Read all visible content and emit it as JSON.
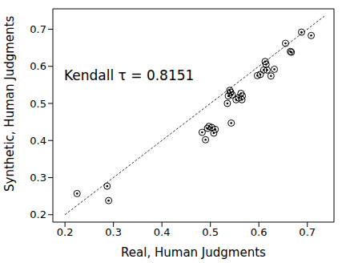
{
  "chart_data": {
    "type": "scatter",
    "x_label": "Real, Human Judgments",
    "y_label": "Synthetic, Human Judgments",
    "annotation": "Kendall τ = 0.8151",
    "xlim": [
      0.175,
      0.755
    ],
    "ylim": [
      0.18,
      0.755
    ],
    "xticks": [
      0.2,
      0.3,
      0.4,
      0.5,
      0.6,
      0.7
    ],
    "yticks": [
      0.2,
      0.3,
      0.4,
      0.5,
      0.6,
      0.7
    ],
    "grid": false,
    "series": [
      {
        "type": "scatter",
        "marker": "circle",
        "color": "#000000",
        "x": [
          0.225,
          0.287,
          0.29,
          0.483,
          0.49,
          0.494,
          0.497,
          0.503,
          0.507,
          0.51,
          0.535,
          0.537,
          0.54,
          0.542,
          0.543,
          0.545,
          0.553,
          0.558,
          0.563,
          0.565,
          0.566,
          0.597,
          0.603,
          0.61,
          0.613,
          0.615,
          0.617,
          0.625,
          0.632,
          0.655,
          0.665,
          0.667,
          0.688,
          0.708
        ],
        "values": [
          0.257,
          0.277,
          0.238,
          0.422,
          0.402,
          0.433,
          0.438,
          0.435,
          0.42,
          0.43,
          0.5,
          0.52,
          0.535,
          0.53,
          0.447,
          0.523,
          0.51,
          0.515,
          0.527,
          0.51,
          0.52,
          0.575,
          0.578,
          0.59,
          0.613,
          0.605,
          0.59,
          0.574,
          0.592,
          0.662,
          0.64,
          0.638,
          0.692,
          0.683
        ]
      },
      {
        "type": "line",
        "line_style": "dashed",
        "color": "#000000",
        "x": [
          0.2,
          0.735
        ],
        "values": [
          0.2,
          0.735
        ]
      }
    ]
  }
}
